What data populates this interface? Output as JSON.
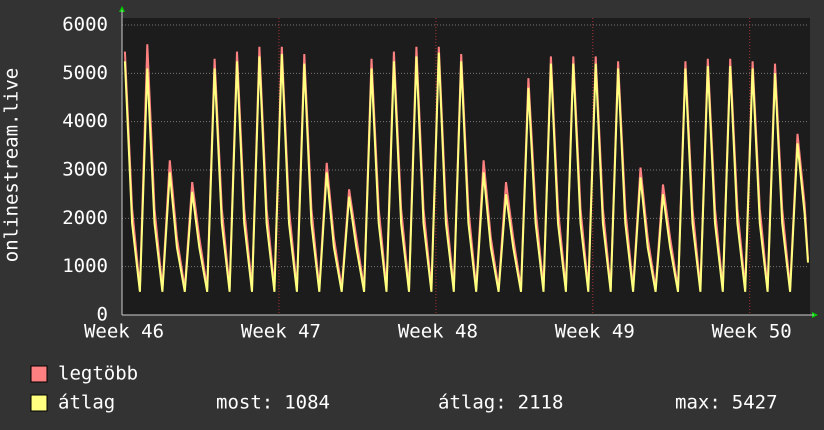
{
  "chart_data": {
    "type": "line",
    "y_label": "onlinestream.live",
    "x": [
      0.13,
      0.45,
      0.8,
      1.13,
      1.45,
      1.8,
      2.13,
      2.45,
      2.8,
      3.13,
      3.45,
      3.8,
      4.13,
      4.45,
      4.8,
      5.13,
      5.45,
      5.8,
      6.13,
      6.45,
      6.8,
      7.13,
      7.45,
      7.8,
      8.13,
      8.45,
      8.8,
      9.13,
      9.45,
      9.8,
      10.13,
      10.45,
      10.8,
      11.13,
      11.45,
      11.8,
      12.13,
      12.45,
      12.8,
      13.13,
      13.45,
      13.8,
      14.13,
      14.45,
      14.8,
      15.13,
      15.45,
      15.8,
      16.13,
      16.45,
      16.8,
      17.13,
      17.45,
      17.8,
      18.13,
      18.45,
      18.8,
      19.13,
      19.45,
      19.8,
      20.13,
      20.45,
      20.8,
      21.13,
      21.45,
      21.8,
      22.13,
      22.45,
      22.8,
      23.13,
      23.45,
      23.8,
      24.13,
      24.45,
      24.8,
      25.13,
      25.45,
      25.8,
      26.13,
      26.45,
      26.8,
      27.13,
      27.45,
      27.8,
      28.13,
      28.45,
      28.8,
      29.13,
      29.45,
      29.8,
      30.13,
      30.45,
      30.6
    ],
    "series": [
      {
        "name": "legtöbb",
        "color": "#ff8080",
        "values": [
          5450,
          2200,
          550,
          5600,
          2200,
          550,
          3200,
          1600,
          550,
          2750,
          1600,
          550,
          5300,
          2200,
          550,
          5450,
          2200,
          550,
          5550,
          2200,
          550,
          5550,
          2200,
          550,
          5400,
          2200,
          550,
          3150,
          1600,
          550,
          2600,
          1600,
          550,
          5300,
          2200,
          550,
          5450,
          2200,
          550,
          5550,
          2200,
          550,
          5550,
          2200,
          550,
          5400,
          2200,
          550,
          3200,
          1600,
          550,
          2750,
          1600,
          550,
          4900,
          2200,
          550,
          5350,
          2200,
          550,
          5350,
          2200,
          550,
          5350,
          2200,
          550,
          5250,
          2200,
          550,
          3050,
          1600,
          550,
          2700,
          1600,
          550,
          5250,
          2200,
          550,
          5300,
          2200,
          550,
          5300,
          2200,
          550,
          5250,
          2200,
          550,
          5200,
          2200,
          550,
          3750,
          2300,
          1150
        ]
      },
      {
        "name": "átlag",
        "color": "#ffff80",
        "values": [
          5250,
          1900,
          480,
          5100,
          1900,
          480,
          2950,
          1400,
          480,
          2550,
          1400,
          480,
          5100,
          1900,
          480,
          5250,
          1900,
          480,
          5350,
          1900,
          480,
          5400,
          1900,
          480,
          5200,
          1900,
          480,
          2950,
          1400,
          480,
          2450,
          1400,
          480,
          5100,
          1900,
          480,
          5250,
          1900,
          480,
          5350,
          1900,
          480,
          5427,
          1900,
          480,
          5250,
          1900,
          480,
          2950,
          1400,
          480,
          2500,
          1400,
          480,
          4700,
          1900,
          480,
          5200,
          1900,
          480,
          5200,
          1900,
          480,
          5200,
          1900,
          480,
          5100,
          1900,
          480,
          2850,
          1400,
          480,
          2500,
          1400,
          480,
          5100,
          1900,
          480,
          5150,
          1900,
          480,
          5150,
          1900,
          480,
          5100,
          1900,
          480,
          5000,
          1900,
          480,
          3550,
          2100,
          1084
        ]
      }
    ],
    "xlim": [
      0,
      30.6
    ],
    "xticks": [
      {
        "value": 0,
        "label": "Week 46"
      },
      {
        "value": 7,
        "label": "Week 47"
      },
      {
        "value": 14,
        "label": "Week 48"
      },
      {
        "value": 21,
        "label": "Week 49"
      },
      {
        "value": 28,
        "label": "Week 50"
      }
    ],
    "ylim": [
      0,
      6000
    ],
    "yticks": [
      0,
      1000,
      2000,
      3000,
      4000,
      5000,
      6000
    ],
    "grid": true,
    "stats": [
      {
        "label": "most:",
        "value": 1084
      },
      {
        "label": "átlag:",
        "value": 2118
      },
      {
        "label": "max:",
        "value": 5427
      }
    ]
  }
}
